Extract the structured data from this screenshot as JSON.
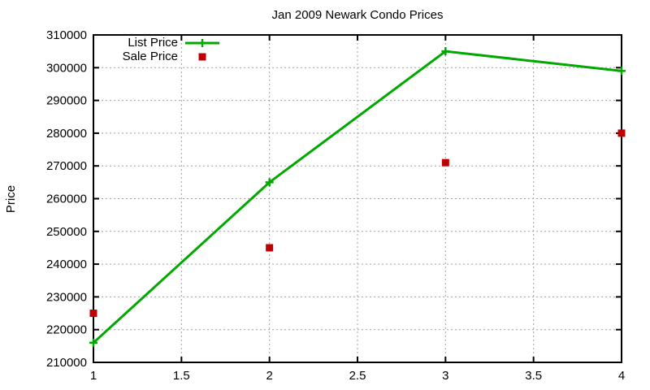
{
  "window": {
    "background": "#ffffff"
  },
  "colors": {
    "list_price_green": "#00a800",
    "sale_price_red": "#c00000",
    "grid_gray": "#a0a0a0",
    "axis_black": "#000000"
  },
  "chart_data": {
    "type": "line",
    "title": "Jan 2009 Newark Condo Prices",
    "xlabel": "",
    "ylabel": "Price",
    "x": [
      1,
      2,
      3,
      4
    ],
    "series": [
      {
        "name": "List Price",
        "style": "linespoints",
        "marker": "plus",
        "color": "#00a800",
        "values": [
          216000,
          265000,
          305000,
          299000
        ]
      },
      {
        "name": "Sale Price",
        "style": "points",
        "marker": "square",
        "color": "#c00000",
        "values": [
          225000,
          245000,
          271000,
          280000
        ]
      }
    ],
    "xlim": [
      1,
      4
    ],
    "ylim": [
      210000,
      310000
    ],
    "x_ticks": [
      1,
      1.5,
      2,
      2.5,
      3,
      3.5,
      4
    ],
    "x_tick_labels": [
      "1",
      "1.5",
      "2",
      "2.5",
      "3",
      "3.5",
      "4"
    ],
    "y_ticks": [
      210000,
      220000,
      230000,
      240000,
      250000,
      260000,
      270000,
      280000,
      290000,
      300000,
      310000
    ],
    "y_tick_labels": [
      "210000",
      "220000",
      "230000",
      "240000",
      "250000",
      "260000",
      "270000",
      "280000",
      "290000",
      "300000",
      "310000"
    ],
    "grid": true,
    "legend_position": "top-left-inside"
  }
}
